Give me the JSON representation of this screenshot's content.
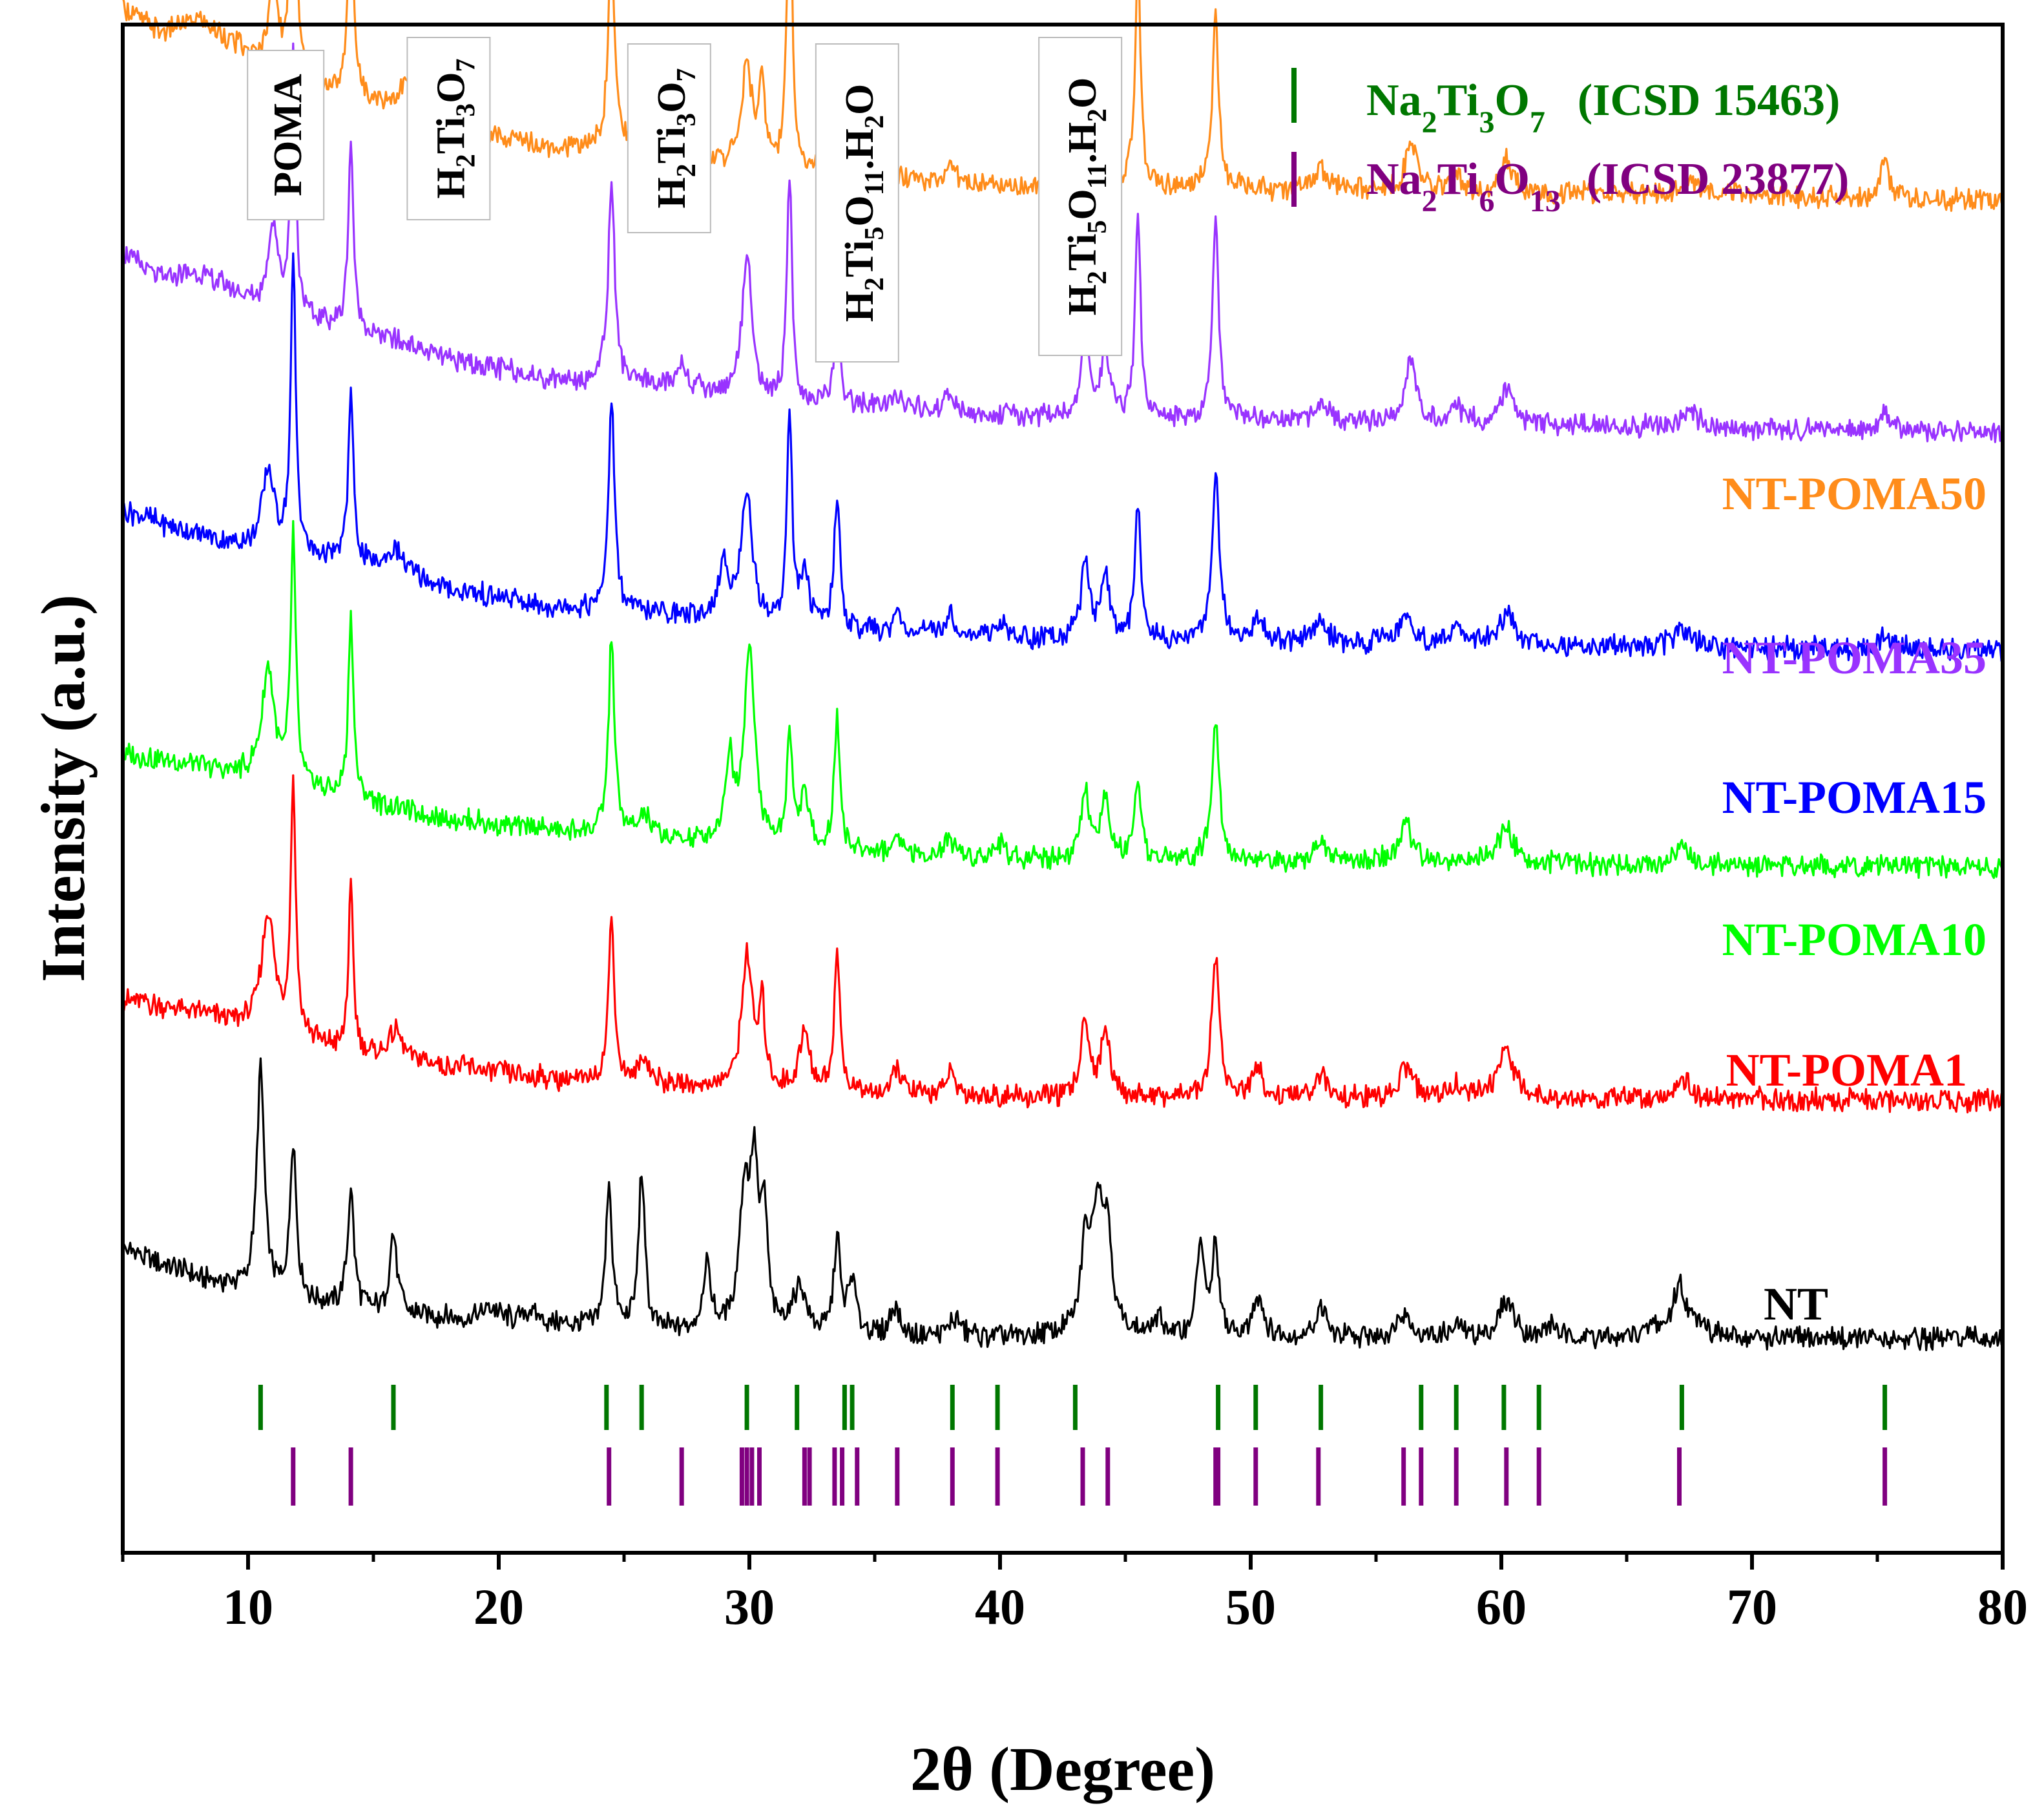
{
  "chart_data": {
    "type": "line",
    "title": "",
    "xlabel": "2θ (Degree)",
    "ylabel": "Intensity (a.u.)",
    "xlim": [
      5,
      80
    ],
    "x_ticks": [
      10,
      20,
      30,
      40,
      50,
      60,
      70,
      80
    ],
    "x_tick_labels": [
      "10",
      "20",
      "30",
      "40",
      "50",
      "60",
      "70",
      "80"
    ],
    "y_ticks_shown": false,
    "series": [
      {
        "name": "NT",
        "label": "NT",
        "color": "#000000",
        "offset": 0,
        "baseline": [
          [
            5,
            0.36
          ],
          [
            8,
            0.25
          ],
          [
            10,
            0.2
          ],
          [
            12,
            0.16
          ],
          [
            16,
            0.11
          ],
          [
            20,
            0.08
          ],
          [
            25,
            0.05
          ],
          [
            35,
            0.025
          ],
          [
            50,
            0.02
          ],
          [
            80,
            0.02
          ]
        ],
        "peaks": [
          [
            10.5,
            0.85,
            0.18
          ],
          [
            11.8,
            0.6,
            0.15
          ],
          [
            14.1,
            0.45,
            0.15
          ],
          [
            15.8,
            0.3,
            0.18
          ],
          [
            19.7,
            0.05,
            0.4
          ],
          [
            21.3,
            0.05,
            0.4
          ],
          [
            24.4,
            0.55,
            0.15
          ],
          [
            25.7,
            0.6,
            0.15
          ],
          [
            28.3,
            0.25,
            0.18
          ],
          [
            29.8,
            0.5,
            0.25
          ],
          [
            30.2,
            0.55,
            0.2
          ],
          [
            30.6,
            0.4,
            0.15
          ],
          [
            32.0,
            0.18,
            0.3
          ],
          [
            33.5,
            0.36,
            0.15
          ],
          [
            34.1,
            0.2,
            0.2
          ],
          [
            35.8,
            0.12,
            0.2
          ],
          [
            38.2,
            0.07,
            0.25
          ],
          [
            43.4,
            0.3,
            0.2
          ],
          [
            43.9,
            0.5,
            0.3
          ],
          [
            44.3,
            0.3,
            0.2
          ],
          [
            46.3,
            0.06,
            0.25
          ],
          [
            48.0,
            0.36,
            0.18
          ],
          [
            48.6,
            0.34,
            0.15
          ],
          [
            50.3,
            0.16,
            0.25
          ],
          [
            52.8,
            0.12,
            0.25
          ],
          [
            56.1,
            0.1,
            0.3
          ],
          [
            58.3,
            0.05,
            0.3
          ],
          [
            60.2,
            0.14,
            0.35
          ],
          [
            62.0,
            0.04,
            0.3
          ],
          [
            66.1,
            0.04,
            0.3
          ],
          [
            67.1,
            0.2,
            0.3
          ],
          [
            67.9,
            0.06,
            0.3
          ]
        ]
      },
      {
        "name": "NT-POMA1",
        "label": "NT-POMA1",
        "color": "#ff0000",
        "offset": 0.9,
        "baseline": [
          [
            5,
            0.4
          ],
          [
            8,
            0.35
          ],
          [
            10,
            0.3
          ],
          [
            14,
            0.2
          ],
          [
            18,
            0.15
          ],
          [
            22,
            0.1
          ],
          [
            26,
            0.08
          ],
          [
            32,
            0.05
          ],
          [
            40,
            0.03
          ],
          [
            80,
            0.02
          ]
        ],
        "peaks": [
          [
            10.8,
            0.45,
            0.3
          ],
          [
            11.8,
            0.95,
            0.12
          ],
          [
            14.1,
            0.6,
            0.12
          ],
          [
            15.9,
            0.1,
            0.3
          ],
          [
            24.5,
            0.62,
            0.14
          ],
          [
            25.8,
            0.1,
            0.25
          ],
          [
            29.9,
            0.5,
            0.25
          ],
          [
            30.5,
            0.3,
            0.15
          ],
          [
            32.2,
            0.22,
            0.25
          ],
          [
            33.5,
            0.55,
            0.13
          ],
          [
            35.9,
            0.1,
            0.2
          ],
          [
            38.0,
            0.08,
            0.25
          ],
          [
            43.4,
            0.3,
            0.2
          ],
          [
            44.2,
            0.26,
            0.2
          ],
          [
            48.6,
            0.55,
            0.18
          ],
          [
            50.3,
            0.1,
            0.25
          ],
          [
            52.8,
            0.08,
            0.3
          ],
          [
            56.2,
            0.12,
            0.3
          ],
          [
            58.2,
            0.06,
            0.3
          ],
          [
            60.2,
            0.2,
            0.35
          ],
          [
            67.2,
            0.08,
            0.35
          ]
        ]
      },
      {
        "name": "NT-POMA10",
        "label": "NT-POMA10",
        "color": "#00ff00",
        "offset": 1.78,
        "baseline": [
          [
            5,
            0.45
          ],
          [
            8,
            0.4
          ],
          [
            10,
            0.36
          ],
          [
            14,
            0.28
          ],
          [
            18,
            0.2
          ],
          [
            22,
            0.16
          ],
          [
            26,
            0.13
          ],
          [
            32,
            0.08
          ],
          [
            40,
            0.05
          ],
          [
            80,
            0.02
          ]
        ],
        "peaks": [
          [
            10.8,
            0.42,
            0.3
          ],
          [
            11.8,
            0.95,
            0.12
          ],
          [
            14.1,
            0.7,
            0.12
          ],
          [
            24.5,
            0.75,
            0.14
          ],
          [
            25.8,
            0.08,
            0.25
          ],
          [
            29.2,
            0.3,
            0.2
          ],
          [
            30.0,
            0.75,
            0.25
          ],
          [
            31.6,
            0.4,
            0.14
          ],
          [
            32.2,
            0.2,
            0.2
          ],
          [
            33.5,
            0.5,
            0.14
          ],
          [
            35.9,
            0.08,
            0.2
          ],
          [
            38.0,
            0.07,
            0.25
          ],
          [
            40.0,
            0.06,
            0.3
          ],
          [
            43.4,
            0.25,
            0.2
          ],
          [
            44.2,
            0.22,
            0.2
          ],
          [
            45.5,
            0.28,
            0.15
          ],
          [
            48.6,
            0.55,
            0.18
          ],
          [
            52.8,
            0.08,
            0.3
          ],
          [
            56.2,
            0.14,
            0.3
          ],
          [
            60.2,
            0.14,
            0.35
          ],
          [
            67.2,
            0.07,
            0.35
          ]
        ]
      },
      {
        "name": "NT-POMA15",
        "label": "NT-POMA15",
        "color": "#0000ff",
        "offset": 2.6,
        "baseline": [
          [
            5,
            0.55
          ],
          [
            8,
            0.45
          ],
          [
            10,
            0.4
          ],
          [
            14,
            0.35
          ],
          [
            18,
            0.25
          ],
          [
            22,
            0.18
          ],
          [
            26,
            0.16
          ],
          [
            32,
            0.1
          ],
          [
            40,
            0.06
          ],
          [
            80,
            0.02
          ]
        ],
        "peaks": [
          [
            10.8,
            0.3,
            0.3
          ],
          [
            11.8,
            1.1,
            0.12
          ],
          [
            14.1,
            0.65,
            0.12
          ],
          [
            15.9,
            0.1,
            0.4
          ],
          [
            24.5,
            0.8,
            0.14
          ],
          [
            29.0,
            0.2,
            0.25
          ],
          [
            29.9,
            0.5,
            0.25
          ],
          [
            31.6,
            0.8,
            0.12
          ],
          [
            32.2,
            0.2,
            0.2
          ],
          [
            33.5,
            0.5,
            0.14
          ],
          [
            35.9,
            0.08,
            0.2
          ],
          [
            38.0,
            0.08,
            0.25
          ],
          [
            40.0,
            0.06,
            0.3
          ],
          [
            43.4,
            0.3,
            0.2
          ],
          [
            44.2,
            0.25,
            0.2
          ],
          [
            45.5,
            0.5,
            0.14
          ],
          [
            48.6,
            0.62,
            0.18
          ],
          [
            50.3,
            0.08,
            0.25
          ],
          [
            52.8,
            0.08,
            0.3
          ],
          [
            56.2,
            0.1,
            0.3
          ],
          [
            58.2,
            0.06,
            0.3
          ],
          [
            60.2,
            0.12,
            0.35
          ],
          [
            67.2,
            0.06,
            0.35
          ],
          [
            75.3,
            0.06,
            0.2
          ]
        ]
      },
      {
        "name": "NT-POMA35",
        "label": "NT-POMA35",
        "color": "#9933ff",
        "offset": 3.42,
        "baseline": [
          [
            5,
            0.7
          ],
          [
            6.5,
            0.6
          ],
          [
            8,
            0.62
          ],
          [
            9.5,
            0.55
          ],
          [
            11,
            0.45
          ],
          [
            14,
            0.42
          ],
          [
            18,
            0.3
          ],
          [
            22,
            0.22
          ],
          [
            26,
            0.2
          ],
          [
            32,
            0.13
          ],
          [
            40,
            0.08
          ],
          [
            80,
            0.02
          ]
        ],
        "peaks": [
          [
            11.0,
            0.35,
            0.25
          ],
          [
            11.8,
            1.0,
            0.12
          ],
          [
            14.1,
            0.7,
            0.12
          ],
          [
            24.5,
            0.75,
            0.16
          ],
          [
            27.3,
            0.1,
            0.2
          ],
          [
            29.9,
            0.55,
            0.22
          ],
          [
            31.6,
            0.85,
            0.12
          ],
          [
            33.5,
            0.35,
            0.14
          ],
          [
            35.9,
            0.07,
            0.2
          ],
          [
            38.0,
            0.07,
            0.25
          ],
          [
            43.4,
            0.3,
            0.2
          ],
          [
            44.2,
            0.25,
            0.2
          ],
          [
            45.5,
            0.75,
            0.13
          ],
          [
            48.6,
            0.75,
            0.15
          ],
          [
            52.8,
            0.08,
            0.3
          ],
          [
            56.4,
            0.25,
            0.25
          ],
          [
            58.2,
            0.06,
            0.3
          ],
          [
            60.2,
            0.12,
            0.35
          ],
          [
            67.6,
            0.06,
            0.35
          ],
          [
            75.3,
            0.08,
            0.2
          ]
        ]
      },
      {
        "name": "NT-POMA50",
        "label": "NT-POMA50",
        "color": "#ff8c1a",
        "offset": 4.3,
        "baseline": [
          [
            5,
            0.75
          ],
          [
            6.5,
            0.65
          ],
          [
            8,
            0.7
          ],
          [
            9.5,
            0.6
          ],
          [
            11,
            0.45
          ],
          [
            14,
            0.42
          ],
          [
            17,
            0.35
          ],
          [
            20,
            0.25
          ],
          [
            22,
            0.22
          ],
          [
            26,
            0.2
          ],
          [
            32,
            0.12
          ],
          [
            40,
            0.07
          ],
          [
            80,
            0.02
          ]
        ],
        "peaks": [
          [
            11.0,
            0.4,
            0.25
          ],
          [
            11.8,
            1.3,
            0.12
          ],
          [
            14.1,
            0.8,
            0.12
          ],
          [
            16.3,
            0.1,
            0.3
          ],
          [
            24.5,
            0.75,
            0.16
          ],
          [
            27.3,
            0.1,
            0.25
          ],
          [
            29.9,
            0.4,
            0.22
          ],
          [
            30.5,
            0.3,
            0.15
          ],
          [
            31.6,
            1.2,
            0.12
          ],
          [
            33.5,
            0.3,
            0.14
          ],
          [
            38.0,
            0.06,
            0.25
          ],
          [
            43.4,
            0.2,
            0.2
          ],
          [
            44.2,
            0.18,
            0.2
          ],
          [
            45.5,
            0.85,
            0.13
          ],
          [
            48.6,
            0.65,
            0.15
          ],
          [
            52.8,
            0.08,
            0.3
          ],
          [
            56.4,
            0.2,
            0.25
          ],
          [
            58.2,
            0.06,
            0.3
          ],
          [
            60.2,
            0.12,
            0.35
          ],
          [
            67.6,
            0.05,
            0.35
          ],
          [
            75.3,
            0.15,
            0.18
          ]
        ]
      }
    ],
    "reference_phases": [
      {
        "name": "Na2Ti3O7 (ICSD 15463)",
        "color": "#007700",
        "positions": [
          10.5,
          15.8,
          24.3,
          25.7,
          29.9,
          31.9,
          33.8,
          34.1,
          38.1,
          39.9,
          43.0,
          48.7,
          50.2,
          52.8,
          56.8,
          58.2,
          60.1,
          61.5,
          67.2,
          75.3
        ]
      },
      {
        "name": "Na2Ti6O13 (ICSD 23877)",
        "color": "#800080",
        "positions": [
          11.8,
          14.1,
          24.4,
          27.3,
          29.7,
          29.9,
          30.1,
          30.4,
          32.2,
          32.4,
          33.4,
          33.7,
          34.3,
          35.9,
          38.1,
          39.9,
          43.3,
          44.3,
          48.6,
          48.7,
          50.2,
          52.7,
          56.1,
          56.8,
          58.2,
          60.2,
          61.5,
          67.1,
          75.3
        ]
      }
    ],
    "legend": [
      {
        "marker": "|",
        "formula": "Na2Ti3O7",
        "ref": "(ICSD 15463)",
        "color": "#007700"
      },
      {
        "marker": "|",
        "formula": "Na2Ti6O13",
        "ref": "(ICSD 23877)",
        "color": "#800080"
      }
    ],
    "phase_annotations": [
      {
        "text": "POMA",
        "x": 11.5
      },
      {
        "text": "H2Ti3O7",
        "x": 18.0
      },
      {
        "text": "H2Ti3O7",
        "x": 26.8
      },
      {
        "text": "H2Ti5O11.H2O",
        "x": 34.3
      },
      {
        "text": "H2Ti5O11.H2O",
        "x": 43.2
      }
    ]
  }
}
